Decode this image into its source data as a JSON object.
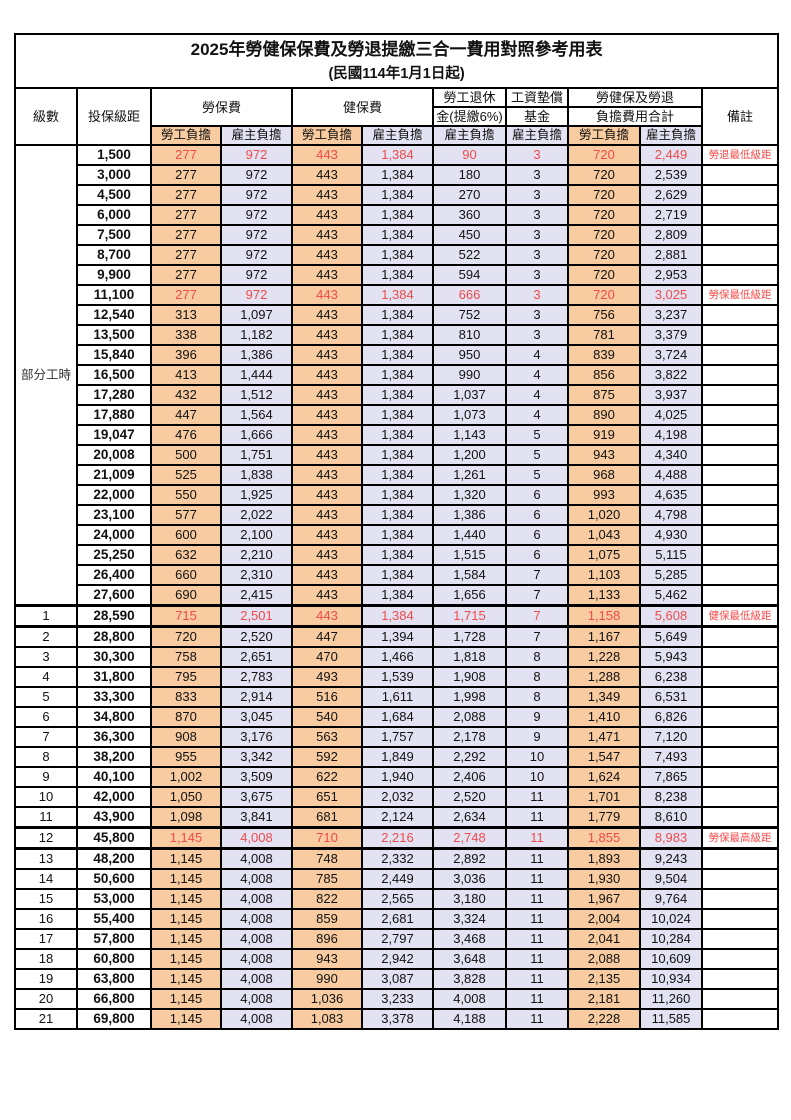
{
  "title": {
    "line1": "2025年勞健保保費及勞退提繳三合一費用對照參考用表",
    "line2": "(民國114年1月1日起)"
  },
  "header": {
    "level_label": "級數",
    "bracket_label": "投保級距",
    "labor_fee_label": "勞保費",
    "health_fee_label": "健保費",
    "pension_line1": "勞工退休",
    "pension_line2": "金(提繳6%)",
    "fund_line1": "工資墊償",
    "fund_line2": "基金",
    "total_line1": "勞健保及勞退",
    "total_line2": "負擔費用合計",
    "remark_label": "備註",
    "employee_label": "勞工負擔",
    "employer_label": "雇主負擔"
  },
  "part_time_label": "部分工時",
  "colors": {
    "employee_bg": "#F8CBA0",
    "employer_bg": "#E3E2F3",
    "highlight_text": "#F04A4A",
    "note_text": "#FF4A4A",
    "grid": "#000000"
  },
  "rows": [
    {
      "section": "part_time",
      "level": "",
      "bracket": "1,500",
      "cells": [
        "277",
        "972",
        "443",
        "1,384",
        "90",
        "3",
        "720",
        "2,449"
      ],
      "note": "勞退最低級距",
      "highlight": true,
      "thick": false
    },
    {
      "section": "part_time",
      "level": "",
      "bracket": "3,000",
      "cells": [
        "277",
        "972",
        "443",
        "1,384",
        "180",
        "3",
        "720",
        "2,539"
      ],
      "note": "",
      "highlight": false,
      "thick": false
    },
    {
      "section": "part_time",
      "level": "",
      "bracket": "4,500",
      "cells": [
        "277",
        "972",
        "443",
        "1,384",
        "270",
        "3",
        "720",
        "2,629"
      ],
      "note": "",
      "highlight": false,
      "thick": false
    },
    {
      "section": "part_time",
      "level": "",
      "bracket": "6,000",
      "cells": [
        "277",
        "972",
        "443",
        "1,384",
        "360",
        "3",
        "720",
        "2,719"
      ],
      "note": "",
      "highlight": false,
      "thick": false
    },
    {
      "section": "part_time",
      "level": "",
      "bracket": "7,500",
      "cells": [
        "277",
        "972",
        "443",
        "1,384",
        "450",
        "3",
        "720",
        "2,809"
      ],
      "note": "",
      "highlight": false,
      "thick": false
    },
    {
      "section": "part_time",
      "level": "",
      "bracket": "8,700",
      "cells": [
        "277",
        "972",
        "443",
        "1,384",
        "522",
        "3",
        "720",
        "2,881"
      ],
      "note": "",
      "highlight": false,
      "thick": false
    },
    {
      "section": "part_time",
      "level": "",
      "bracket": "9,900",
      "cells": [
        "277",
        "972",
        "443",
        "1,384",
        "594",
        "3",
        "720",
        "2,953"
      ],
      "note": "",
      "highlight": false,
      "thick": false
    },
    {
      "section": "part_time",
      "level": "",
      "bracket": "11,100",
      "cells": [
        "277",
        "972",
        "443",
        "1,384",
        "666",
        "3",
        "720",
        "3,025"
      ],
      "note": "勞保最低級距",
      "highlight": true,
      "thick": false
    },
    {
      "section": "part_time",
      "level": "",
      "bracket": "12,540",
      "cells": [
        "313",
        "1,097",
        "443",
        "1,384",
        "752",
        "3",
        "756",
        "3,237"
      ],
      "note": "",
      "highlight": false,
      "thick": false
    },
    {
      "section": "part_time",
      "level": "",
      "bracket": "13,500",
      "cells": [
        "338",
        "1,182",
        "443",
        "1,384",
        "810",
        "3",
        "781",
        "3,379"
      ],
      "note": "",
      "highlight": false,
      "thick": false
    },
    {
      "section": "part_time",
      "level": "",
      "bracket": "15,840",
      "cells": [
        "396",
        "1,386",
        "443",
        "1,384",
        "950",
        "4",
        "839",
        "3,724"
      ],
      "note": "",
      "highlight": false,
      "thick": false
    },
    {
      "section": "part_time",
      "level": "",
      "bracket": "16,500",
      "cells": [
        "413",
        "1,444",
        "443",
        "1,384",
        "990",
        "4",
        "856",
        "3,822"
      ],
      "note": "",
      "highlight": false,
      "thick": false
    },
    {
      "section": "part_time",
      "level": "",
      "bracket": "17,280",
      "cells": [
        "432",
        "1,512",
        "443",
        "1,384",
        "1,037",
        "4",
        "875",
        "3,937"
      ],
      "note": "",
      "highlight": false,
      "thick": false
    },
    {
      "section": "part_time",
      "level": "",
      "bracket": "17,880",
      "cells": [
        "447",
        "1,564",
        "443",
        "1,384",
        "1,073",
        "4",
        "890",
        "4,025"
      ],
      "note": "",
      "highlight": false,
      "thick": false
    },
    {
      "section": "part_time",
      "level": "",
      "bracket": "19,047",
      "cells": [
        "476",
        "1,666",
        "443",
        "1,384",
        "1,143",
        "5",
        "919",
        "4,198"
      ],
      "note": "",
      "highlight": false,
      "thick": false
    },
    {
      "section": "part_time",
      "level": "",
      "bracket": "20,008",
      "cells": [
        "500",
        "1,751",
        "443",
        "1,384",
        "1,200",
        "5",
        "943",
        "4,340"
      ],
      "note": "",
      "highlight": false,
      "thick": false
    },
    {
      "section": "part_time",
      "level": "",
      "bracket": "21,009",
      "cells": [
        "525",
        "1,838",
        "443",
        "1,384",
        "1,261",
        "5",
        "968",
        "4,488"
      ],
      "note": "",
      "highlight": false,
      "thick": false
    },
    {
      "section": "part_time",
      "level": "",
      "bracket": "22,000",
      "cells": [
        "550",
        "1,925",
        "443",
        "1,384",
        "1,320",
        "6",
        "993",
        "4,635"
      ],
      "note": "",
      "highlight": false,
      "thick": false
    },
    {
      "section": "part_time",
      "level": "",
      "bracket": "23,100",
      "cells": [
        "577",
        "2,022",
        "443",
        "1,384",
        "1,386",
        "6",
        "1,020",
        "4,798"
      ],
      "note": "",
      "highlight": false,
      "thick": false
    },
    {
      "section": "part_time",
      "level": "",
      "bracket": "24,000",
      "cells": [
        "600",
        "2,100",
        "443",
        "1,384",
        "1,440",
        "6",
        "1,043",
        "4,930"
      ],
      "note": "",
      "highlight": false,
      "thick": false
    },
    {
      "section": "part_time",
      "level": "",
      "bracket": "25,250",
      "cells": [
        "632",
        "2,210",
        "443",
        "1,384",
        "1,515",
        "6",
        "1,075",
        "5,115"
      ],
      "note": "",
      "highlight": false,
      "thick": false
    },
    {
      "section": "part_time",
      "level": "",
      "bracket": "26,400",
      "cells": [
        "660",
        "2,310",
        "443",
        "1,384",
        "1,584",
        "7",
        "1,103",
        "5,285"
      ],
      "note": "",
      "highlight": false,
      "thick": false
    },
    {
      "section": "part_time",
      "level": "",
      "bracket": "27,600",
      "cells": [
        "690",
        "2,415",
        "443",
        "1,384",
        "1,656",
        "7",
        "1,133",
        "5,462"
      ],
      "note": "",
      "highlight": false,
      "thick": false
    },
    {
      "section": "level",
      "level": "1",
      "bracket": "28,590",
      "cells": [
        "715",
        "2,501",
        "443",
        "1,384",
        "1,715",
        "7",
        "1,158",
        "5,608"
      ],
      "note": "健保最低級距",
      "highlight": true,
      "thick": true
    },
    {
      "section": "level",
      "level": "2",
      "bracket": "28,800",
      "cells": [
        "720",
        "2,520",
        "447",
        "1,394",
        "1,728",
        "7",
        "1,167",
        "5,649"
      ],
      "note": "",
      "highlight": false,
      "thick": false
    },
    {
      "section": "level",
      "level": "3",
      "bracket": "30,300",
      "cells": [
        "758",
        "2,651",
        "470",
        "1,466",
        "1,818",
        "8",
        "1,228",
        "5,943"
      ],
      "note": "",
      "highlight": false,
      "thick": false
    },
    {
      "section": "level",
      "level": "4",
      "bracket": "31,800",
      "cells": [
        "795",
        "2,783",
        "493",
        "1,539",
        "1,908",
        "8",
        "1,288",
        "6,238"
      ],
      "note": "",
      "highlight": false,
      "thick": false
    },
    {
      "section": "level",
      "level": "5",
      "bracket": "33,300",
      "cells": [
        "833",
        "2,914",
        "516",
        "1,611",
        "1,998",
        "8",
        "1,349",
        "6,531"
      ],
      "note": "",
      "highlight": false,
      "thick": false
    },
    {
      "section": "level",
      "level": "6",
      "bracket": "34,800",
      "cells": [
        "870",
        "3,045",
        "540",
        "1,684",
        "2,088",
        "9",
        "1,410",
        "6,826"
      ],
      "note": "",
      "highlight": false,
      "thick": false
    },
    {
      "section": "level",
      "level": "7",
      "bracket": "36,300",
      "cells": [
        "908",
        "3,176",
        "563",
        "1,757",
        "2,178",
        "9",
        "1,471",
        "7,120"
      ],
      "note": "",
      "highlight": false,
      "thick": false
    },
    {
      "section": "level",
      "level": "8",
      "bracket": "38,200",
      "cells": [
        "955",
        "3,342",
        "592",
        "1,849",
        "2,292",
        "10",
        "1,547",
        "7,493"
      ],
      "note": "",
      "highlight": false,
      "thick": false
    },
    {
      "section": "level",
      "level": "9",
      "bracket": "40,100",
      "cells": [
        "1,002",
        "3,509",
        "622",
        "1,940",
        "2,406",
        "10",
        "1,624",
        "7,865"
      ],
      "note": "",
      "highlight": false,
      "thick": false
    },
    {
      "section": "level",
      "level": "10",
      "bracket": "42,000",
      "cells": [
        "1,050",
        "3,675",
        "651",
        "2,032",
        "2,520",
        "11",
        "1,701",
        "8,238"
      ],
      "note": "",
      "highlight": false,
      "thick": false
    },
    {
      "section": "level",
      "level": "11",
      "bracket": "43,900",
      "cells": [
        "1,098",
        "3,841",
        "681",
        "2,124",
        "2,634",
        "11",
        "1,779",
        "8,610"
      ],
      "note": "",
      "highlight": false,
      "thick": false
    },
    {
      "section": "level",
      "level": "12",
      "bracket": "45,800",
      "cells": [
        "1,145",
        "4,008",
        "710",
        "2,216",
        "2,748",
        "11",
        "1,855",
        "8,983"
      ],
      "note": "勞保最高級距",
      "highlight": true,
      "thick": true
    },
    {
      "section": "level",
      "level": "13",
      "bracket": "48,200",
      "cells": [
        "1,145",
        "4,008",
        "748",
        "2,332",
        "2,892",
        "11",
        "1,893",
        "9,243"
      ],
      "note": "",
      "highlight": false,
      "thick": false
    },
    {
      "section": "level",
      "level": "14",
      "bracket": "50,600",
      "cells": [
        "1,145",
        "4,008",
        "785",
        "2,449",
        "3,036",
        "11",
        "1,930",
        "9,504"
      ],
      "note": "",
      "highlight": false,
      "thick": false
    },
    {
      "section": "level",
      "level": "15",
      "bracket": "53,000",
      "cells": [
        "1,145",
        "4,008",
        "822",
        "2,565",
        "3,180",
        "11",
        "1,967",
        "9,764"
      ],
      "note": "",
      "highlight": false,
      "thick": false
    },
    {
      "section": "level",
      "level": "16",
      "bracket": "55,400",
      "cells": [
        "1,145",
        "4,008",
        "859",
        "2,681",
        "3,324",
        "11",
        "2,004",
        "10,024"
      ],
      "note": "",
      "highlight": false,
      "thick": false
    },
    {
      "section": "level",
      "level": "17",
      "bracket": "57,800",
      "cells": [
        "1,145",
        "4,008",
        "896",
        "2,797",
        "3,468",
        "11",
        "2,041",
        "10,284"
      ],
      "note": "",
      "highlight": false,
      "thick": false
    },
    {
      "section": "level",
      "level": "18",
      "bracket": "60,800",
      "cells": [
        "1,145",
        "4,008",
        "943",
        "2,942",
        "3,648",
        "11",
        "2,088",
        "10,609"
      ],
      "note": "",
      "highlight": false,
      "thick": false
    },
    {
      "section": "level",
      "level": "19",
      "bracket": "63,800",
      "cells": [
        "1,145",
        "4,008",
        "990",
        "3,087",
        "3,828",
        "11",
        "2,135",
        "10,934"
      ],
      "note": "",
      "highlight": false,
      "thick": false
    },
    {
      "section": "level",
      "level": "20",
      "bracket": "66,800",
      "cells": [
        "1,145",
        "4,008",
        "1,036",
        "3,233",
        "4,008",
        "11",
        "2,181",
        "11,260"
      ],
      "note": "",
      "highlight": false,
      "thick": false
    },
    {
      "section": "level",
      "level": "21",
      "bracket": "69,800",
      "cells": [
        "1,145",
        "4,008",
        "1,083",
        "3,378",
        "4,188",
        "11",
        "2,228",
        "11,585"
      ],
      "note": "",
      "highlight": false,
      "thick": false
    }
  ]
}
